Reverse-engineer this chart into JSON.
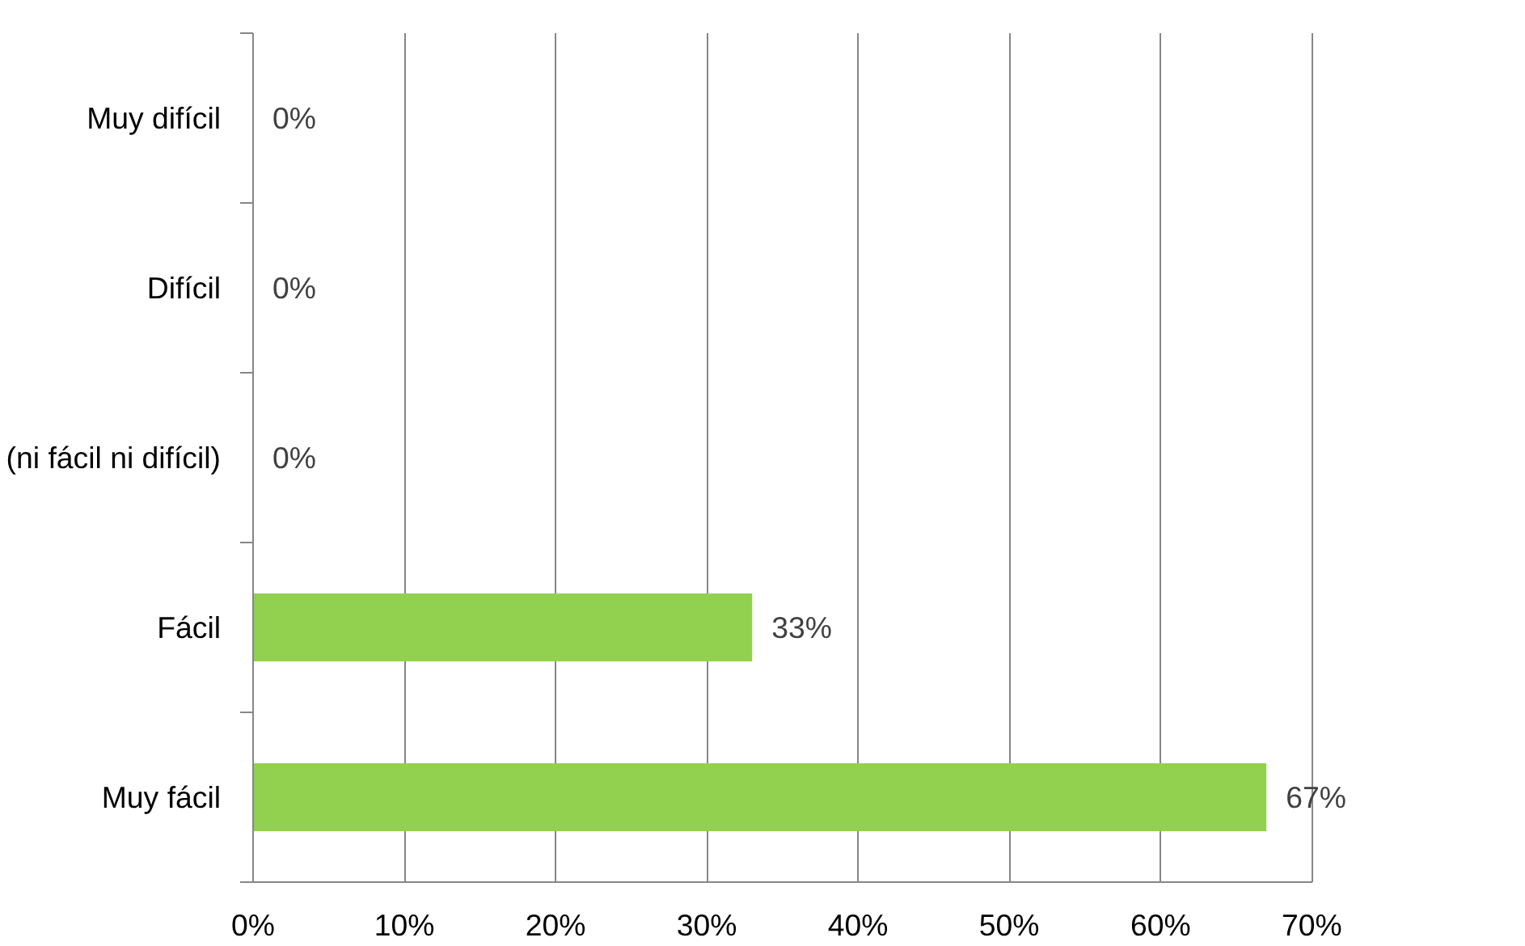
{
  "chart_data": {
    "type": "bar",
    "orientation": "horizontal",
    "categories": [
      "Muy difícil",
      "Difícil",
      "(ni fácil ni difícil)",
      "Fácil",
      "Muy fácil"
    ],
    "values": [
      0,
      0,
      0,
      33,
      67
    ],
    "value_labels": [
      "0%",
      "0%",
      "0%",
      "33%",
      "67%"
    ],
    "color": "#92d050",
    "xlim": [
      0,
      70
    ],
    "xticks": [
      {
        "value": 0,
        "label": "0%"
      },
      {
        "value": 10,
        "label": "10%"
      },
      {
        "value": 20,
        "label": "20%"
      },
      {
        "value": 30,
        "label": "30%"
      },
      {
        "value": 40,
        "label": "40%"
      },
      {
        "value": 50,
        "label": "50%"
      },
      {
        "value": 60,
        "label": "60%"
      },
      {
        "value": 70,
        "label": "70%"
      }
    ],
    "grid": "x"
  }
}
